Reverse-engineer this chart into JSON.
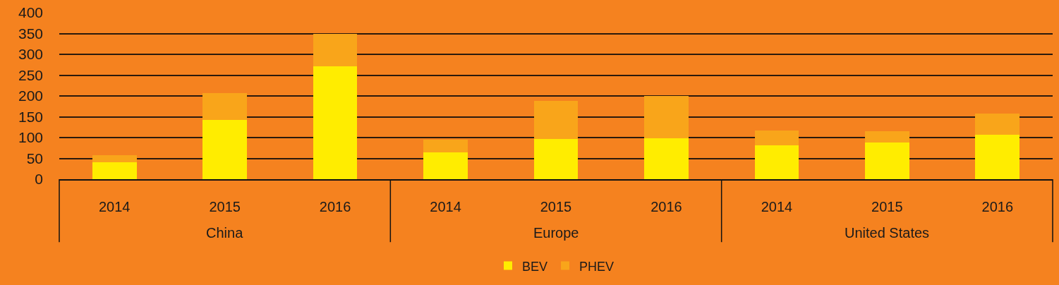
{
  "chart_data": {
    "type": "bar",
    "stacked": true,
    "categories": [
      "2014",
      "2015",
      "2016",
      "2014",
      "2015",
      "2016",
      "2014",
      "2015",
      "2016"
    ],
    "annotations": [
      "China",
      "Europe",
      "United States"
    ],
    "series": [
      {
        "name": "BEV",
        "color": "#ffed00",
        "values": [
          40,
          142,
          272,
          65,
          96,
          99,
          81,
          88,
          106
        ]
      },
      {
        "name": "PHEV",
        "color": "#f9a51a",
        "values": [
          17,
          64,
          78,
          30,
          92,
          101,
          36,
          27,
          52
        ]
      }
    ],
    "ylim": [
      0,
      400
    ],
    "yticks": [
      0,
      50,
      100,
      150,
      200,
      250,
      300,
      350,
      400
    ],
    "grid": "y",
    "legend": "bottom"
  }
}
